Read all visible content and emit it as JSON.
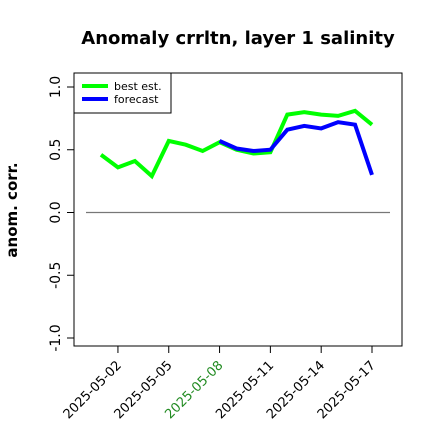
{
  "chart_data": {
    "type": "line",
    "title": "Anomaly crrltn, layer 1 salinity",
    "xlabel": "",
    "ylabel": "anom. corr.",
    "ylim": [
      -1.0,
      1.0
    ],
    "grid": false,
    "legend_position": "top-left",
    "x": [
      "2025-05-01",
      "2025-05-02",
      "2025-05-03",
      "2025-05-04",
      "2025-05-05",
      "2025-05-06",
      "2025-05-07",
      "2025-05-08",
      "2025-05-09",
      "2025-05-10",
      "2025-05-11",
      "2025-05-12",
      "2025-05-13",
      "2025-05-14",
      "2025-05-15",
      "2025-05-16",
      "2025-05-17"
    ],
    "x_ticks": [
      "2025-05-02",
      "2025-05-05",
      "2025-05-08",
      "2025-05-11",
      "2025-05-14",
      "2025-05-17"
    ],
    "highlight_tick": "2025-05-08",
    "y_ticks": [
      "-1.0",
      "-0.5",
      "0.0",
      "0.5",
      "1.0"
    ],
    "reference_line": 0.0,
    "series": [
      {
        "name": "best est.",
        "color": "#00ff00",
        "values": [
          0.46,
          0.36,
          0.41,
          0.29,
          0.57,
          0.54,
          0.49,
          0.56,
          0.5,
          0.47,
          0.48,
          0.78,
          0.8,
          0.78,
          0.77,
          0.81,
          0.7
        ]
      },
      {
        "name": "forecast",
        "color": "#0000ff",
        "values": [
          null,
          null,
          null,
          null,
          null,
          null,
          null,
          0.57,
          0.51,
          0.49,
          0.5,
          0.66,
          0.69,
          0.67,
          0.72,
          0.7,
          0.3
        ]
      }
    ],
    "colors": {
      "reference": "#777777",
      "highlight_tick": "#228b22",
      "axis": "#000000"
    }
  }
}
